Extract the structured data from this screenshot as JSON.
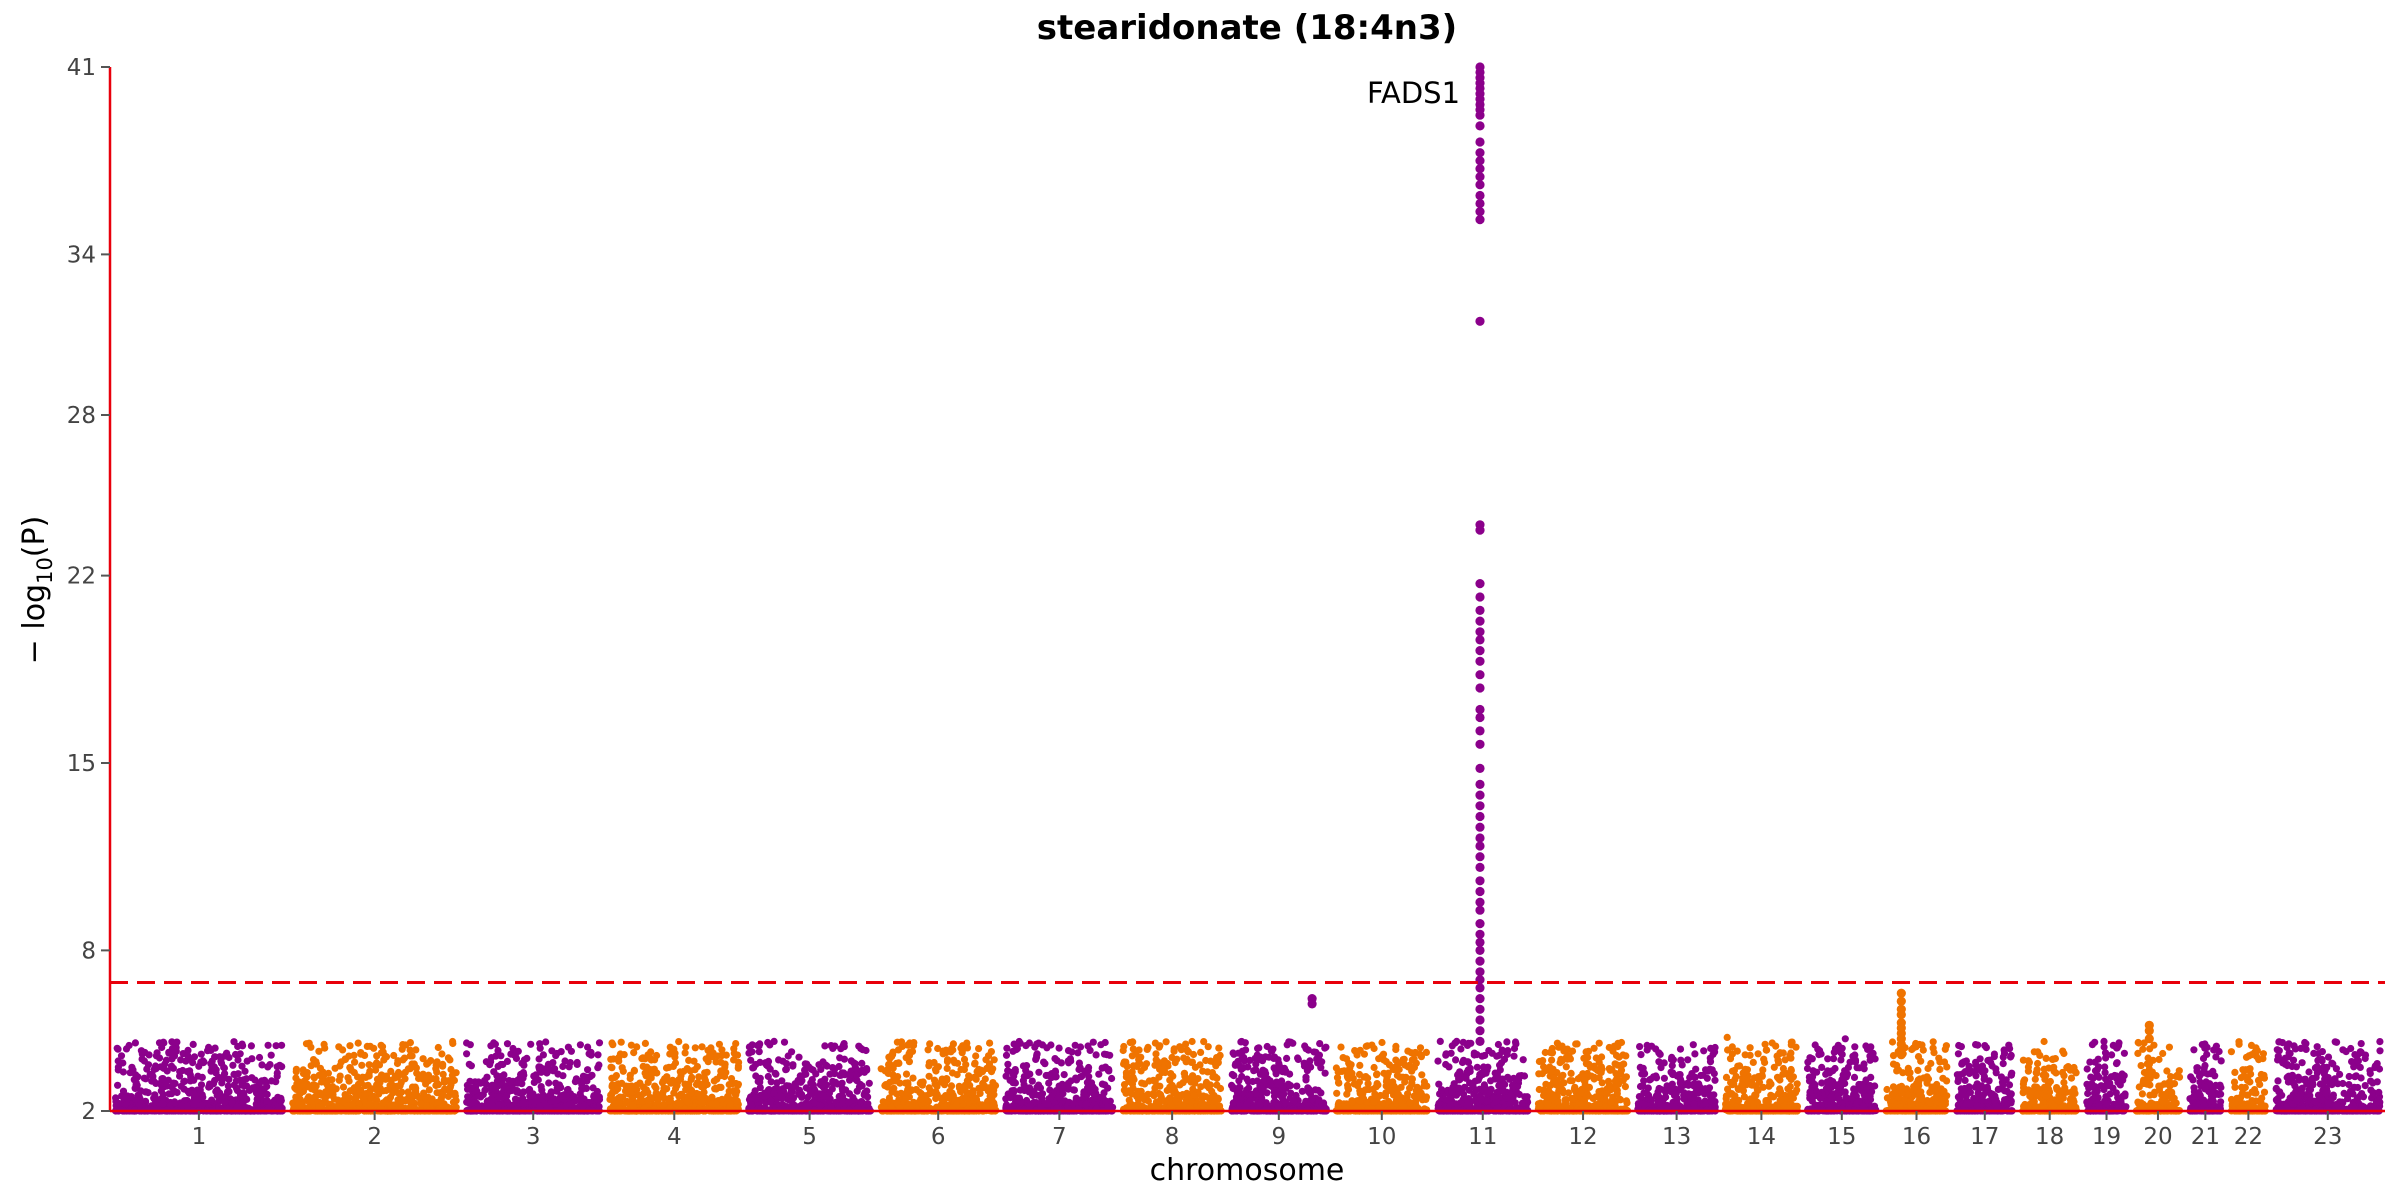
{
  "chart_data": {
    "type": "scatter",
    "subtype": "manhattan",
    "title": "stearidonate (18:4n3)",
    "xlabel": "chromosome",
    "ylabel": "− log10(P)",
    "ylim": [
      2,
      41
    ],
    "yticks": [
      2,
      8,
      15,
      22,
      28,
      34,
      41
    ],
    "significance_threshold": 6.8,
    "grid": false,
    "colors": {
      "odd": "#8b008b",
      "even": "#ef7300",
      "threshold": "#e8000b",
      "axis": "#e8000b"
    },
    "annotations": [
      {
        "text": "FADS1",
        "chromosome": "11",
        "y": 40
      }
    ],
    "chromosomes": [
      {
        "label": "1",
        "size": 249
      },
      {
        "label": "2",
        "size": 243
      },
      {
        "label": "3",
        "size": 198
      },
      {
        "label": "4",
        "size": 191
      },
      {
        "label": "5",
        "size": 181
      },
      {
        "label": "6",
        "size": 171
      },
      {
        "label": "7",
        "size": 159
      },
      {
        "label": "8",
        "size": 146
      },
      {
        "label": "9",
        "size": 141
      },
      {
        "label": "10",
        "size": 135
      },
      {
        "label": "11",
        "size": 135
      },
      {
        "label": "12",
        "size": 133
      },
      {
        "label": "13",
        "size": 115
      },
      {
        "label": "14",
        "size": 107
      },
      {
        "label": "15",
        "size": 102
      },
      {
        "label": "16",
        "size": 90
      },
      {
        "label": "17",
        "size": 83
      },
      {
        "label": "18",
        "size": 80
      },
      {
        "label": "19",
        "size": 59
      },
      {
        "label": "20",
        "size": 64
      },
      {
        "label": "21",
        "size": 47
      },
      {
        "label": "22",
        "size": 51
      },
      {
        "label": "23",
        "size": 155
      }
    ],
    "peaks": [
      {
        "chromosome": "11",
        "position": 0.47,
        "y": [
          41.0,
          40.8,
          40.6,
          40.4,
          40.2,
          40.0,
          39.8,
          39.6,
          39.4,
          39.2,
          38.8,
          38.2,
          37.8,
          37.5,
          37.2,
          36.9,
          36.6,
          36.2,
          35.9,
          35.6,
          35.3,
          31.5,
          23.9,
          23.7,
          21.7,
          21.2,
          20.7,
          20.3,
          19.9,
          19.6,
          19.2,
          18.8,
          18.3,
          17.8,
          17.0,
          16.7,
          16.2,
          15.7,
          14.8,
          14.2,
          13.8,
          13.4,
          13.0,
          12.6,
          12.2,
          11.9,
          11.5,
          11.1,
          10.6,
          10.2,
          9.8,
          9.5,
          9.0,
          8.6,
          8.3,
          8.0,
          7.6,
          7.2,
          6.9,
          6.6,
          6.2,
          5.8,
          5.4,
          5.0,
          4.6
        ]
      },
      {
        "chromosome": "16",
        "position": 0.25,
        "y": [
          6.4,
          6.1,
          5.8,
          5.6,
          5.3,
          5.1,
          4.9,
          4.7,
          4.5,
          4.3,
          4.1
        ]
      },
      {
        "chromosome": "9",
        "position": 0.85,
        "y": [
          6.2,
          6.0
        ]
      },
      {
        "chromosome": "20",
        "position": 0.3,
        "y": [
          5.2,
          5.0,
          4.7
        ]
      }
    ]
  }
}
